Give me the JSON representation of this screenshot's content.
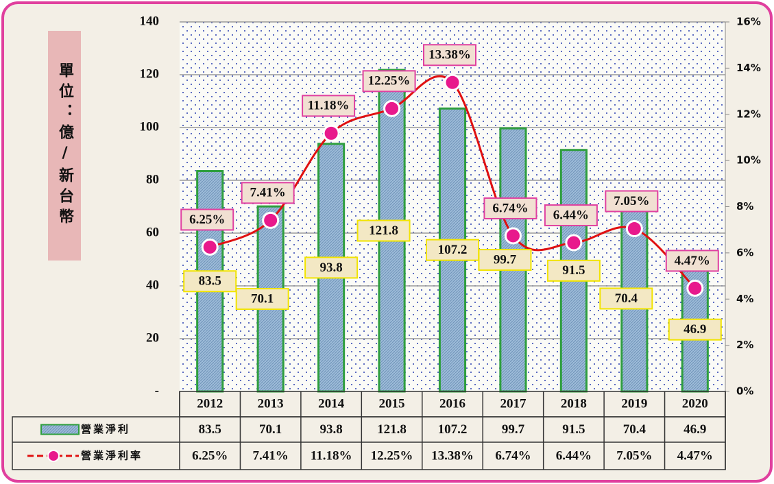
{
  "chart_data": {
    "type": "combo",
    "unit_label": "單位：億/新台幣",
    "categories": [
      "2012",
      "2013",
      "2014",
      "2015",
      "2016",
      "2017",
      "2018",
      "2019",
      "2020"
    ],
    "series": [
      {
        "name": "營業淨利",
        "type": "bar",
        "color": "#2e9e3e",
        "fill": "#9dbbd8",
        "values": [
          83.5,
          70.1,
          93.8,
          121.8,
          107.2,
          99.7,
          91.5,
          70.4,
          46.9
        ]
      },
      {
        "name": "營業淨利率",
        "type": "line",
        "axis": "y2",
        "color": "#e8198c",
        "line_color": "#e01010",
        "values": [
          6.25,
          7.41,
          11.18,
          12.25,
          13.38,
          6.74,
          6.44,
          7.05,
          4.47
        ],
        "value_labels": [
          "6.25%",
          "7.41%",
          "11.18%",
          "12.25%",
          "13.38%",
          "6.74%",
          "6.44%",
          "7.05%",
          "4.47%"
        ]
      }
    ],
    "ylim": [
      0,
      140
    ],
    "yticks": [
      {
        "value": 0,
        "label": "-"
      },
      20,
      40,
      60,
      80,
      100,
      120,
      140
    ],
    "y2lim": [
      0,
      16
    ],
    "y2ticks": [
      {
        "value": 0,
        "label": "0%"
      },
      {
        "value": 2,
        "label": "2%"
      },
      {
        "value": 4,
        "label": "4%"
      },
      {
        "value": 6,
        "label": "6%"
      },
      {
        "value": 8,
        "label": "8%"
      },
      {
        "value": 10,
        "label": "10%"
      },
      {
        "value": 12,
        "label": "12%"
      },
      {
        "value": 14,
        "label": "14%"
      },
      {
        "value": 16,
        "label": "16%"
      }
    ],
    "grid": true
  }
}
